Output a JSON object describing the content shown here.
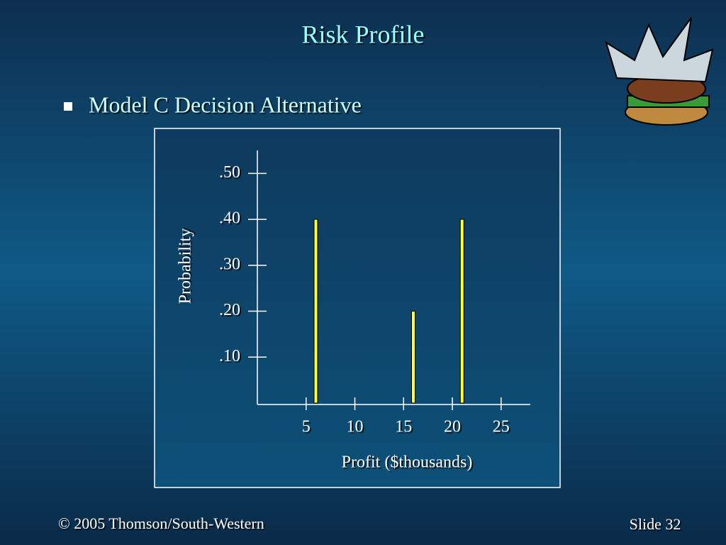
{
  "title": "Risk Profile",
  "bullet": "Model C Decision Alternative",
  "footer": "© 2005  Thomson/South-Western",
  "slide_number": "Slide 32",
  "chart_data": {
    "type": "bar",
    "x": [
      6,
      16,
      21
    ],
    "values": [
      0.4,
      0.2,
      0.4
    ],
    "color": "#ffff33",
    "xlabel": "Profit ($thousands)",
    "ylabel": "Probability",
    "xlim": [
      0,
      28
    ],
    "xticks": [
      5,
      10,
      15,
      20,
      25
    ],
    "ylim": [
      0,
      0.55
    ],
    "yticks": [
      {
        "value": 0.1,
        "label": ".10"
      },
      {
        "value": 0.2,
        "label": ".20"
      },
      {
        "value": 0.3,
        "label": ".30"
      },
      {
        "value": 0.4,
        "label": ".40"
      },
      {
        "value": 0.5,
        "label": ".50"
      }
    ]
  }
}
